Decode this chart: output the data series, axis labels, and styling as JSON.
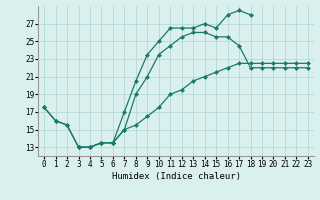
{
  "xlabel": "Humidex (Indice chaleur)",
  "bg_color": "#daf0ee",
  "grid_color": "#aed4cf",
  "line_color": "#1a7a6a",
  "line1_x": [
    0,
    1,
    2,
    3,
    4,
    5,
    6,
    7,
    8,
    9,
    10,
    11,
    12,
    13,
    14,
    15,
    16,
    17,
    18
  ],
  "line1_y": [
    17.5,
    16.0,
    15.5,
    13.0,
    13.0,
    13.5,
    13.5,
    17.0,
    20.5,
    23.5,
    25.0,
    26.5,
    26.5,
    26.5,
    27.0,
    26.5,
    28.0,
    28.5,
    28.0
  ],
  "line2_x": [
    0,
    1,
    2,
    3,
    4,
    5,
    6,
    7,
    8,
    9,
    10,
    11,
    12,
    13,
    14,
    15,
    16,
    17,
    18,
    19,
    20,
    21,
    22,
    23
  ],
  "line2_y": [
    17.5,
    16.0,
    15.5,
    13.0,
    13.0,
    13.5,
    13.5,
    15.0,
    19.0,
    21.0,
    23.5,
    24.5,
    25.5,
    26.0,
    26.0,
    25.5,
    25.5,
    24.5,
    22.0,
    22.0,
    22.0,
    22.0,
    22.0,
    22.0
  ],
  "line3_x": [
    3,
    4,
    5,
    6,
    7,
    8,
    9,
    10,
    11,
    12,
    13,
    14,
    15,
    16,
    17,
    18,
    19,
    20,
    21,
    22,
    23
  ],
  "line3_y": [
    13.0,
    13.0,
    13.5,
    13.5,
    15.0,
    15.5,
    16.5,
    17.5,
    19.0,
    19.5,
    20.5,
    21.0,
    21.5,
    22.0,
    22.5,
    22.5,
    22.5,
    22.5,
    22.5,
    22.5,
    22.5
  ],
  "ylim": [
    12,
    29
  ],
  "xlim": [
    -0.5,
    23.5
  ],
  "yticks": [
    13,
    15,
    17,
    19,
    21,
    23,
    25,
    27
  ],
  "xticks": [
    0,
    1,
    2,
    3,
    4,
    5,
    6,
    7,
    8,
    9,
    10,
    11,
    12,
    13,
    14,
    15,
    16,
    17,
    18,
    19,
    20,
    21,
    22,
    23
  ],
  "xlabel_fontsize": 6.5,
  "tick_fontsize": 5.5,
  "marker_size": 2.5,
  "line_width": 0.9
}
